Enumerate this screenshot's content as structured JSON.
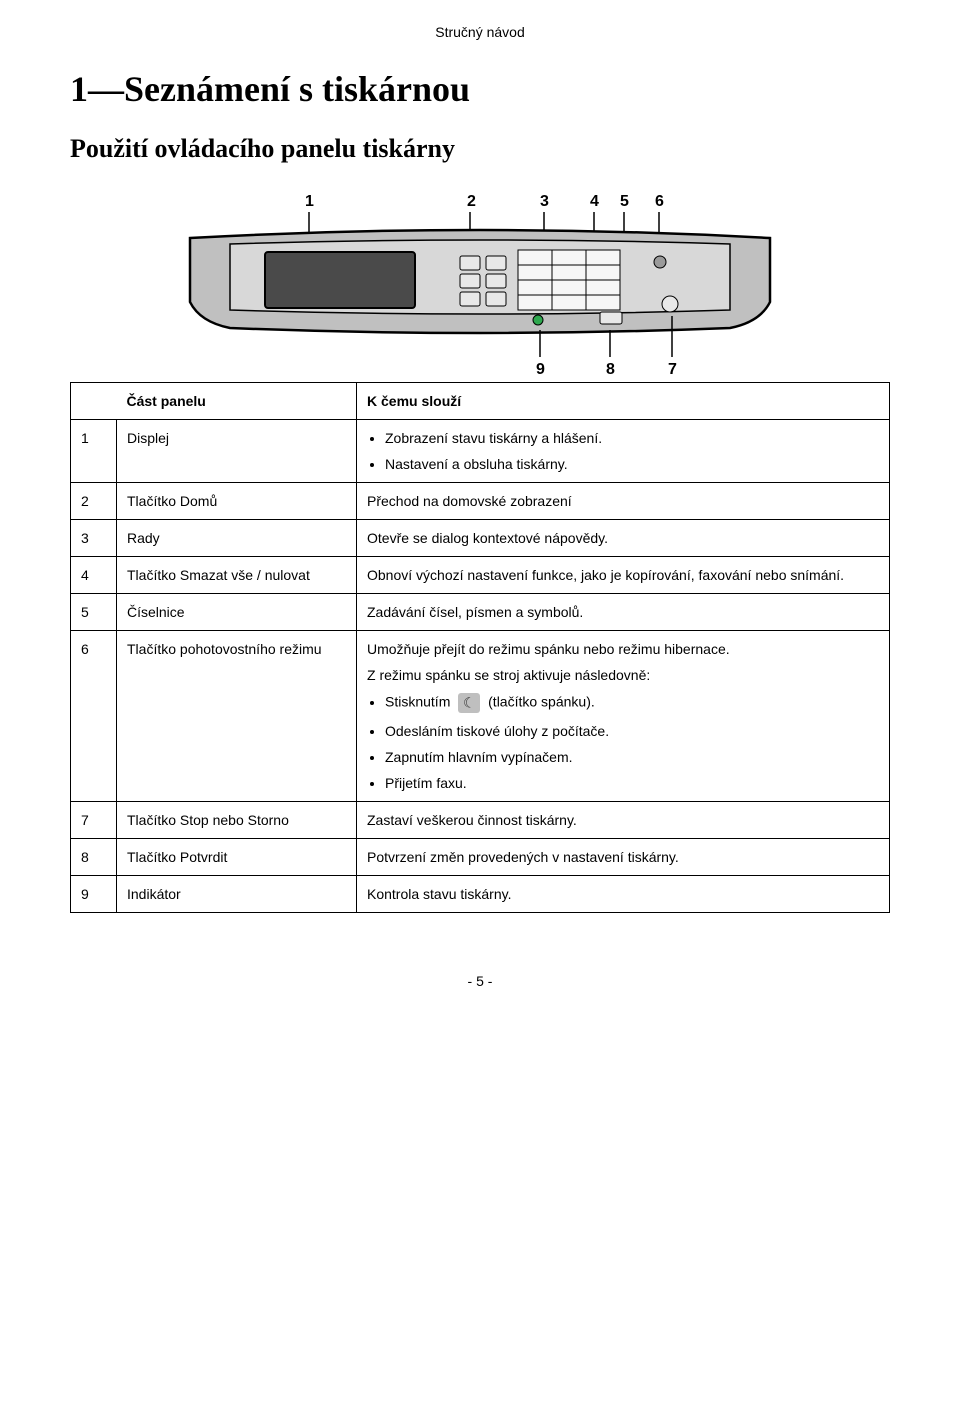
{
  "doc_header": "Stručný návod",
  "title": "1—Seznámení s tiskárnou",
  "subtitle": "Použití ovládacího panelu tiskárny",
  "footer": "- 5 -",
  "figure": {
    "callouts": [
      "1",
      "2",
      "3",
      "4",
      "5",
      "6",
      "7",
      "8",
      "9"
    ],
    "palette": {
      "body": "#c0c0c0",
      "outline": "#000000",
      "screen_bg": "#4a4a4a",
      "keypad_bg": "#f2f2f2",
      "led_green": "#2fa84f",
      "led_grey": "#9a9a9a"
    }
  },
  "table": {
    "headers": {
      "part": "Část panelu",
      "purpose": "K čemu slouží"
    },
    "rows": [
      {
        "num": "1",
        "name": "Displej",
        "desc": {
          "bullets": [
            "Zobrazení stavu tiskárny a hlášení.",
            "Nastavení a obsluha tiskárny."
          ]
        }
      },
      {
        "num": "2",
        "name": "Tlačítko Domů",
        "desc": {
          "text": "Přechod na domovské zobrazení"
        }
      },
      {
        "num": "3",
        "name": "Rady",
        "desc": {
          "text": "Otevře se dialog kontextové nápovědy."
        }
      },
      {
        "num": "4",
        "name": "Tlačítko Smazat vše / nulovat",
        "desc": {
          "text": "Obnoví výchozí nastavení funkce, jako je kopírování, faxování nebo snímání."
        }
      },
      {
        "num": "5",
        "name": "Číselnice",
        "desc": {
          "text": "Zadávání čísel, písmen a symbolů."
        }
      },
      {
        "num": "6",
        "name": "Tlačítko pohotovostního režimu",
        "desc": {
          "intro_lines": [
            "Umožňuje přejít do režimu spánku nebo režimu hibernace.",
            "Z režimu spánku se stroj aktivuje následovně:"
          ],
          "bullets_with_icon": {
            "pre": "Stisknutím",
            "post": "(tlačítko spánku)."
          },
          "bullets": [
            "Odesláním tiskové úlohy z počítače.",
            "Zapnutím hlavním vypínačem.",
            "Přijetím faxu."
          ]
        }
      },
      {
        "num": "7",
        "name": "Tlačítko Stop nebo Storno",
        "desc": {
          "text": "Zastaví veškerou činnost tiskárny."
        }
      },
      {
        "num": "8",
        "name": "Tlačítko Potvrdit",
        "desc": {
          "text": "Potvrzení změn provedených v nastavení tiskárny."
        }
      },
      {
        "num": "9",
        "name": "Indikátor",
        "desc": {
          "text": "Kontrola stavu tiskárny."
        }
      }
    ]
  }
}
